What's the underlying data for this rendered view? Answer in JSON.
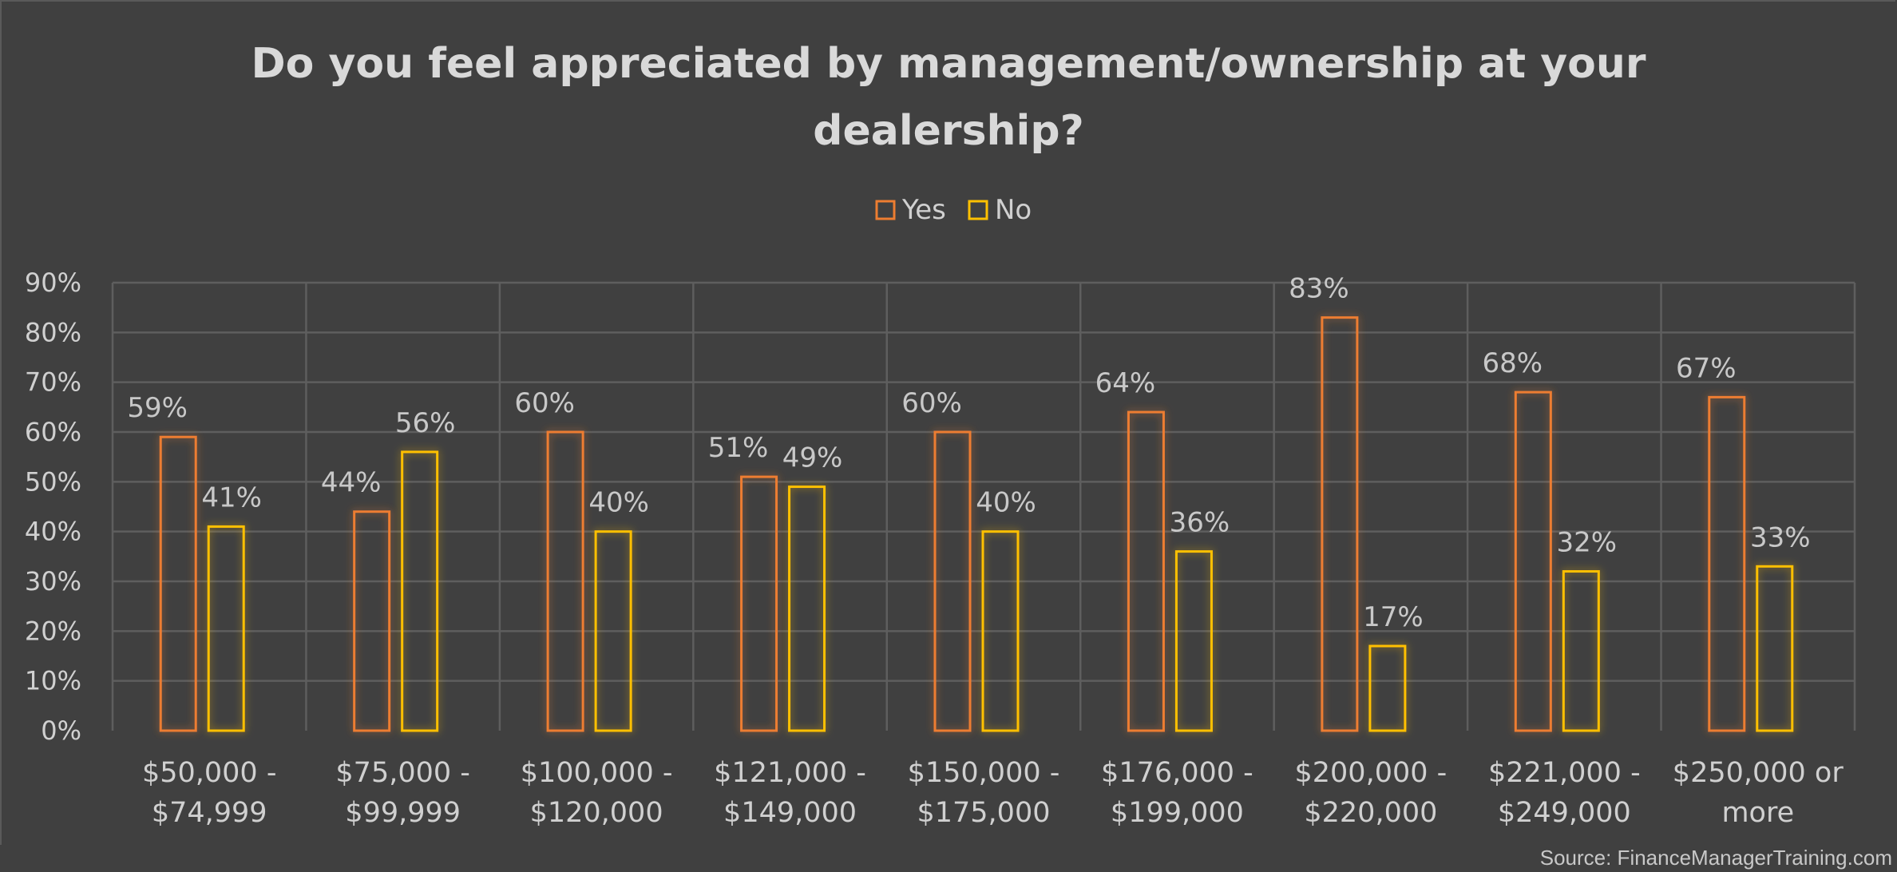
{
  "chart_data": {
    "type": "bar",
    "title": "Do you feel appreciated by management/ownership at your dealership?",
    "categories": [
      [
        "$50,000 -",
        "$74,999"
      ],
      [
        "$75,000 -",
        "$99,999"
      ],
      [
        "$100,000 -",
        "$120,000"
      ],
      [
        "$121,000 -",
        "$149,000"
      ],
      [
        "$150,000 -",
        "$175,000"
      ],
      [
        "$176,000 -",
        "$199,000"
      ],
      [
        "$200,000 -",
        "$220,000"
      ],
      [
        "$221,000 -",
        "$249,000"
      ],
      [
        "$250,000 or",
        "more"
      ]
    ],
    "series": [
      {
        "name": "Yes",
        "color": "#ed7d31",
        "values": [
          59,
          44,
          60,
          51,
          60,
          64,
          83,
          68,
          67
        ]
      },
      {
        "name": "No",
        "color": "#ffc000",
        "values": [
          41,
          56,
          40,
          49,
          40,
          36,
          17,
          32,
          33
        ]
      }
    ],
    "ylim": [
      0,
      90
    ],
    "yticks": [
      "0%",
      "10%",
      "20%",
      "30%",
      "40%",
      "50%",
      "60%",
      "70%",
      "80%",
      "90%"
    ],
    "value_suffix": "%",
    "legend_position": "top",
    "grid": true
  },
  "source": "Source: FinanceManagerTraining.com"
}
